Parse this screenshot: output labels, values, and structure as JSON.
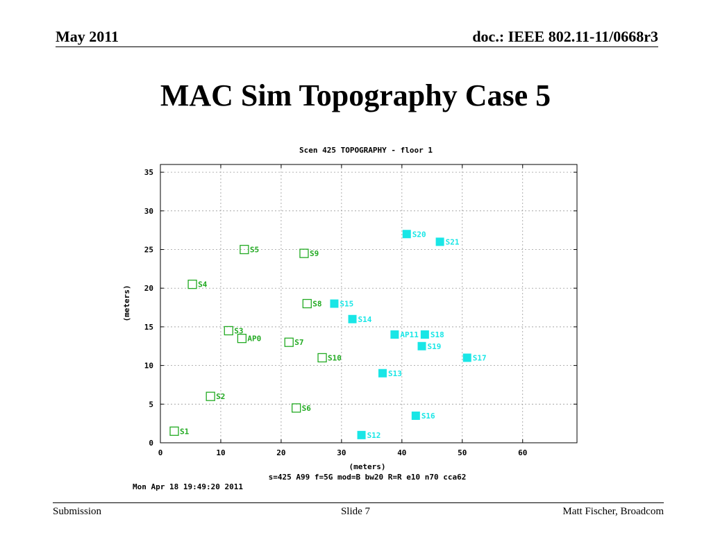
{
  "header": {
    "date": "May 2011",
    "doc_id": "doc.: IEEE 802.11-11/0668r3"
  },
  "slide": {
    "title": "MAC Sim Topography Case 5"
  },
  "footer": {
    "left": "Submission",
    "center": "Slide 7",
    "right": "Matt Fischer, Broadcom"
  },
  "chart_data": {
    "type": "scatter",
    "title": "Scen 425 TOPOGRAPHY - floor 1",
    "xlabel": "(meters)",
    "ylabel": "(meters)",
    "subtitle": "s=425 A99 f=5G mod=B bw20 R=R  e10 n70 cca62",
    "timestamp": "Mon Apr 18 19:49:20 2011",
    "xlim": [
      0,
      69
    ],
    "ylim": [
      0,
      36
    ],
    "x_ticks": [
      0,
      10,
      20,
      30,
      40,
      50,
      60
    ],
    "y_ticks": [
      0,
      5,
      10,
      15,
      20,
      25,
      30,
      35
    ],
    "grid": true,
    "colors": {
      "green": "#22aa22",
      "cyan": "#19e6e6",
      "axis": "#000000",
      "grid": "#999999"
    },
    "series": [
      {
        "marker": "open-square",
        "color": "#22aa22",
        "points": [
          {
            "label": "AP0",
            "x": 13.5,
            "y": 13.5,
            "bold": true
          },
          {
            "label": "S1",
            "x": 2.3,
            "y": 1.5
          },
          {
            "label": "S2",
            "x": 8.3,
            "y": 6.0
          },
          {
            "label": "S3",
            "x": 11.3,
            "y": 14.5
          },
          {
            "label": "S4",
            "x": 5.3,
            "y": 20.5
          },
          {
            "label": "S5",
            "x": 13.9,
            "y": 25.0
          },
          {
            "label": "S6",
            "x": 22.5,
            "y": 4.5
          },
          {
            "label": "S7",
            "x": 21.3,
            "y": 13.0
          },
          {
            "label": "S8",
            "x": 24.3,
            "y": 18.0
          },
          {
            "label": "S9",
            "x": 23.8,
            "y": 24.5
          },
          {
            "label": "S10",
            "x": 26.8,
            "y": 11.0
          }
        ]
      },
      {
        "marker": "filled-square",
        "color": "#19e6e6",
        "points": [
          {
            "label": "AP11",
            "x": 38.8,
            "y": 14.0
          },
          {
            "label": "S12",
            "x": 33.3,
            "y": 1.0
          },
          {
            "label": "S13",
            "x": 36.8,
            "y": 9.0
          },
          {
            "label": "S14",
            "x": 31.8,
            "y": 16.0
          },
          {
            "label": "S15",
            "x": 28.8,
            "y": 18.0
          },
          {
            "label": "S16",
            "x": 42.3,
            "y": 3.5
          },
          {
            "label": "S17",
            "x": 50.8,
            "y": 11.0
          },
          {
            "label": "S18",
            "x": 43.8,
            "y": 14.0
          },
          {
            "label": "S19",
            "x": 43.3,
            "y": 12.5
          },
          {
            "label": "S20",
            "x": 40.8,
            "y": 27.0
          },
          {
            "label": "S21",
            "x": 46.3,
            "y": 26.0
          }
        ]
      }
    ]
  }
}
